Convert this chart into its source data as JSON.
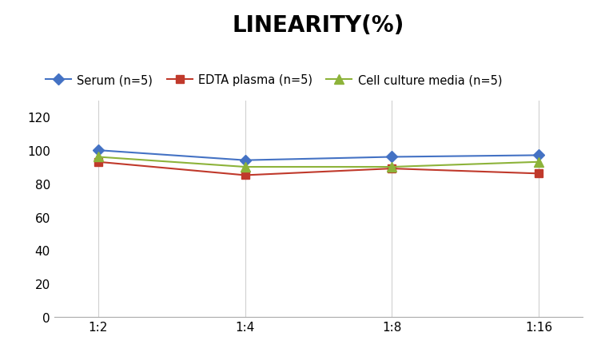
{
  "title": "LINEARITY(%)",
  "x_labels": [
    "1:2",
    "1:4",
    "1:8",
    "1:16"
  ],
  "series": [
    {
      "label": "Serum (n=5)",
      "values": [
        100,
        94,
        96,
        97
      ],
      "color": "#4472C4",
      "marker": "D",
      "markersize": 7,
      "linewidth": 1.5
    },
    {
      "label": "EDTA plasma (n=5)",
      "values": [
        93,
        85,
        89,
        86
      ],
      "color": "#C0392B",
      "marker": "s",
      "markersize": 7,
      "linewidth": 1.5
    },
    {
      "label": "Cell culture media (n=5)",
      "values": [
        96,
        90,
        90,
        93
      ],
      "color": "#8DB33A",
      "marker": "^",
      "markersize": 8,
      "linewidth": 1.5
    }
  ],
  "ylim": [
    0,
    130
  ],
  "yticks": [
    0,
    20,
    40,
    60,
    80,
    100,
    120
  ],
  "title_fontsize": 20,
  "title_fontweight": "bold",
  "legend_fontsize": 10.5,
  "tick_fontsize": 11,
  "bg_color": "#FFFFFF",
  "grid_color": "#D0D0D0",
  "spine_color": "#AAAAAA"
}
